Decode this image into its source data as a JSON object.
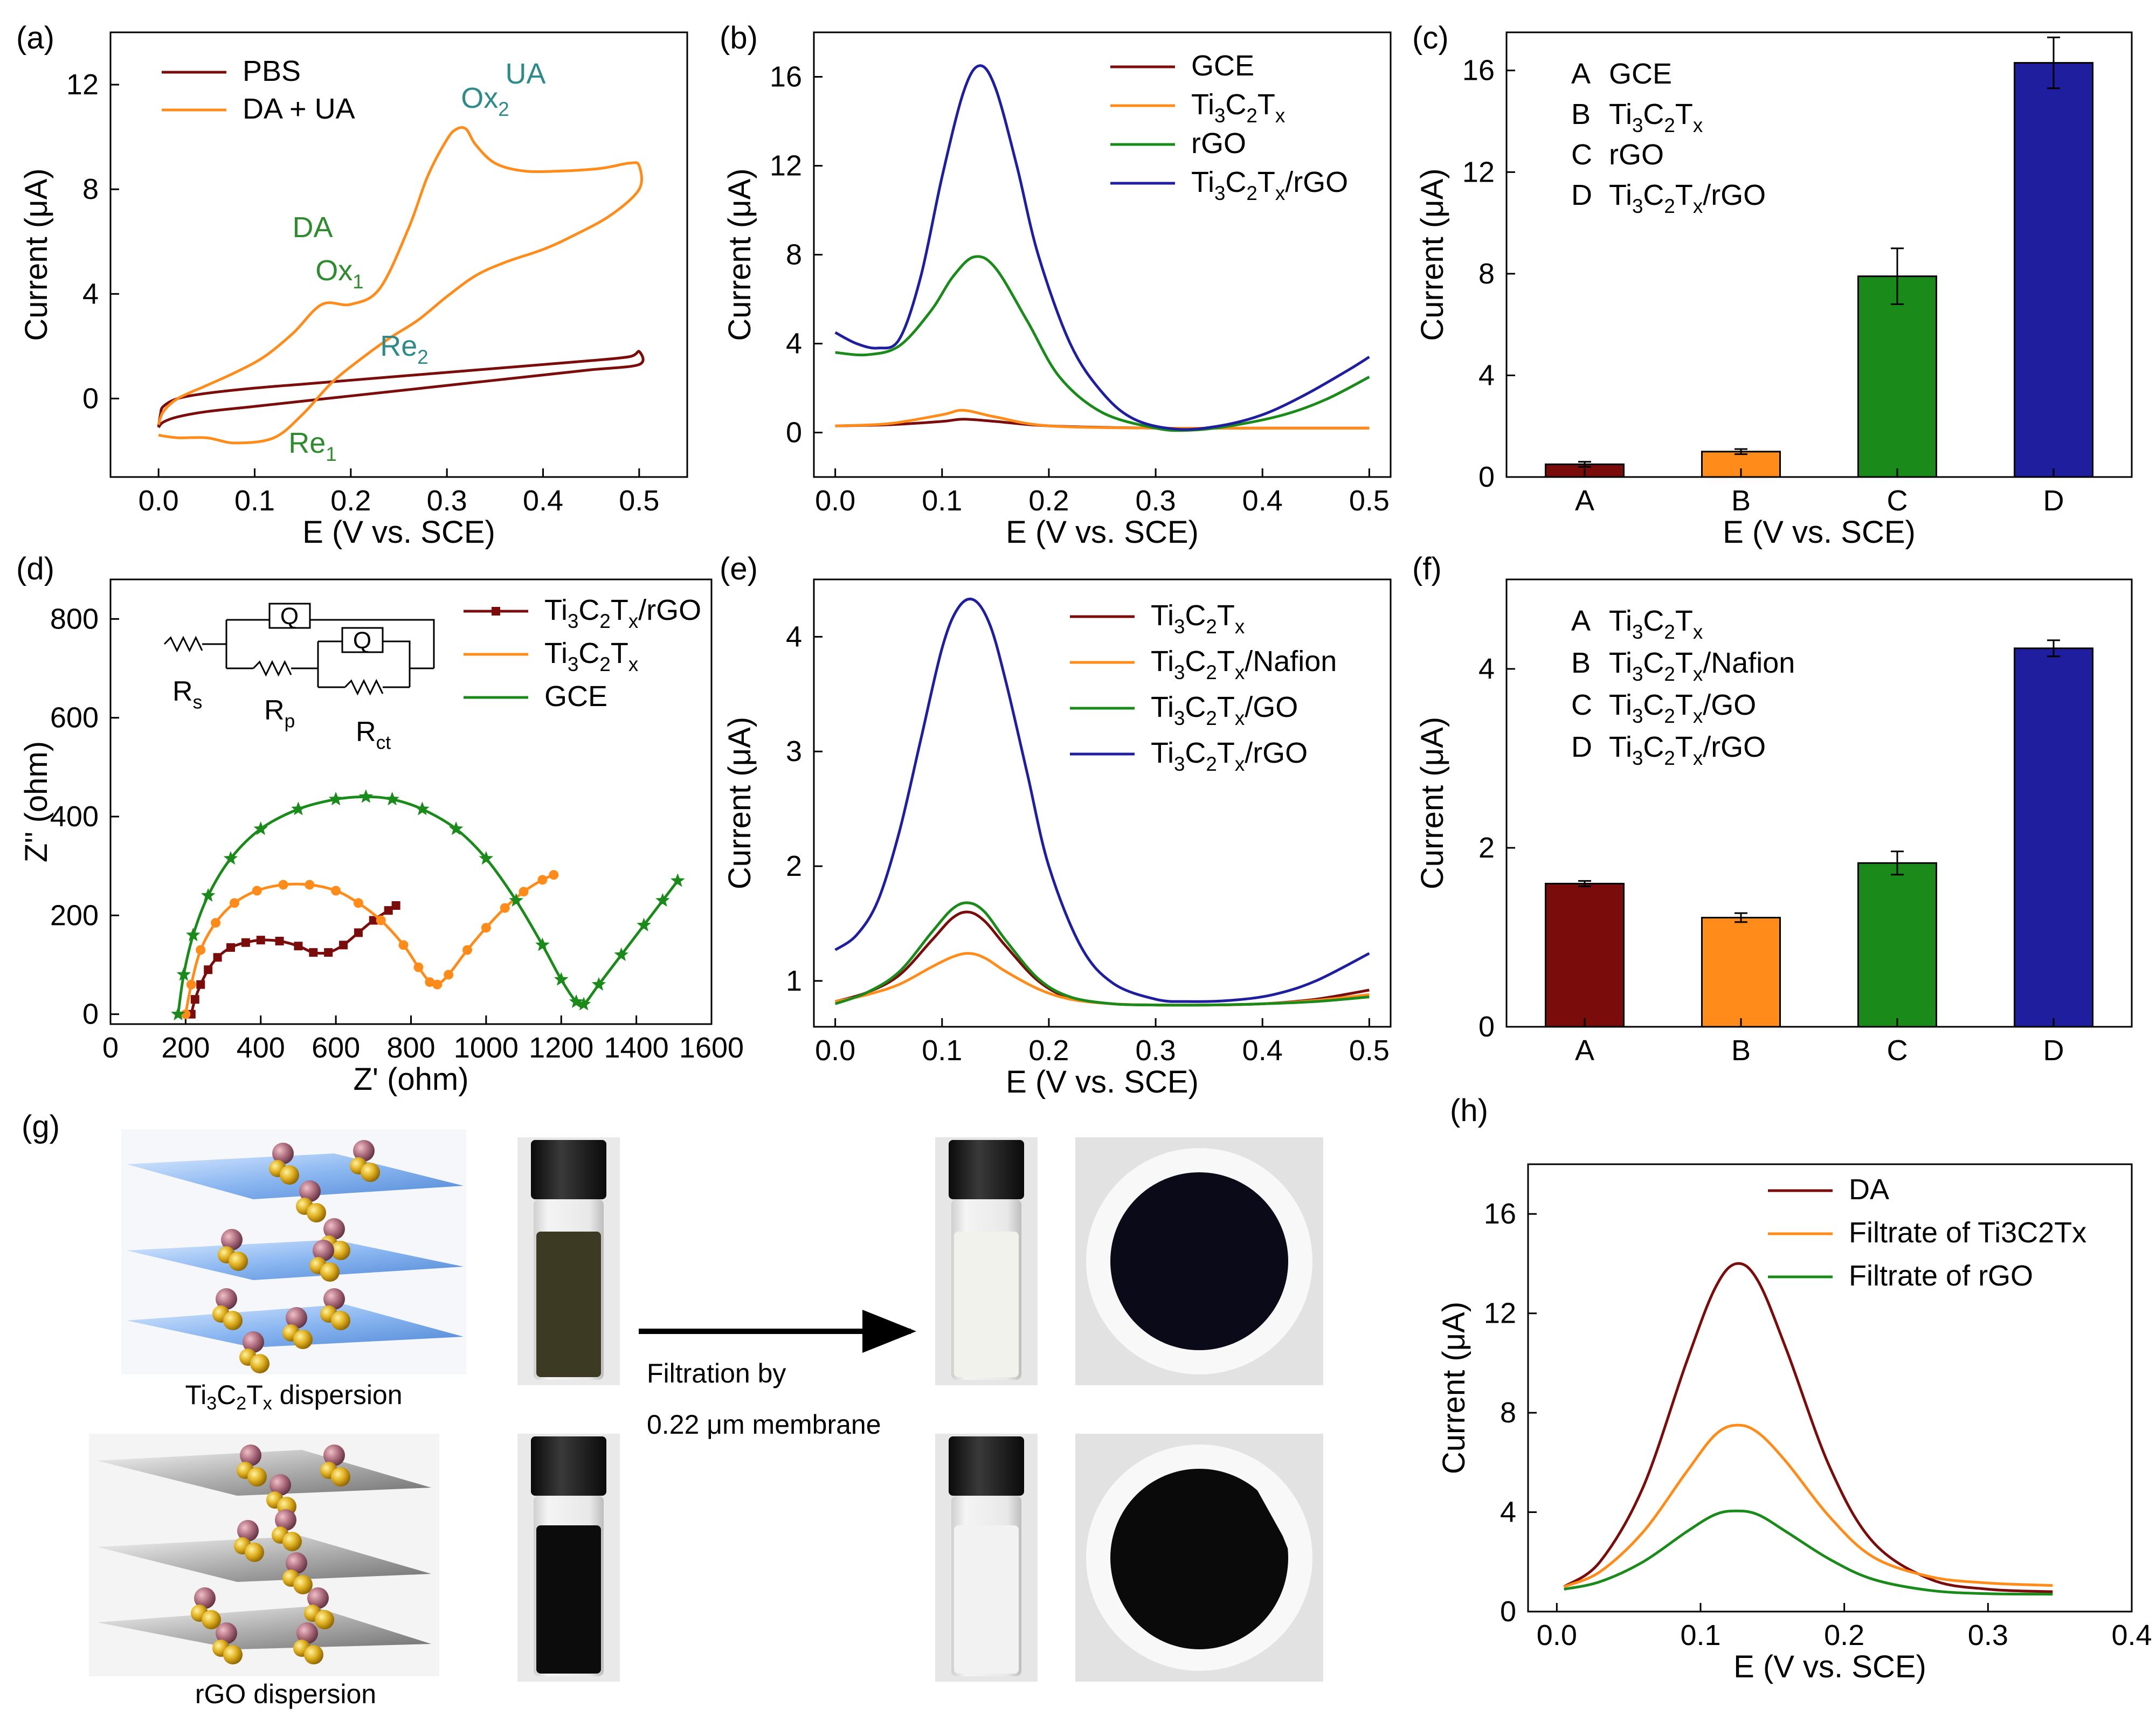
{
  "figure_title": "Multi-panel electrochemical characterization figure",
  "colors": {
    "darkred": "#7a0c0c",
    "orange": "#ff8c1a",
    "green": "#1a8a1a",
    "blue": "#1e1e9e",
    "annot_green": "#2e8b2e",
    "annot_teal": "#2f8a8a",
    "axis": "#000000"
  },
  "chart_data": [
    {
      "panel": "(a)",
      "type": "line",
      "xlabel": "E (V vs. SCE)",
      "ylabel": "Current (μA)",
      "xlim": [
        -0.05,
        0.55
      ],
      "ylim": [
        -3,
        14
      ],
      "xticks": [
        0.0,
        0.1,
        0.2,
        0.3,
        0.4,
        0.5
      ],
      "yticks": [
        0,
        4,
        8,
        12
      ],
      "legend": [
        "PBS",
        "DA + UA"
      ],
      "annotations": [
        "DA",
        "Ox1",
        "UA",
        "Ox2",
        "Re2",
        "Re1"
      ],
      "series": [
        {
          "name": "PBS",
          "color": "darkred",
          "x": [
            0.0,
            0.002,
            0.005,
            0.02,
            0.05,
            0.1,
            0.15,
            0.2,
            0.25,
            0.3,
            0.35,
            0.4,
            0.45,
            0.49,
            0.5,
            0.5,
            0.45,
            0.4,
            0.35,
            0.3,
            0.25,
            0.2,
            0.15,
            0.1,
            0.05,
            0.02,
            0.005,
            0.0
          ],
          "y": [
            -1.1,
            -0.6,
            -0.3,
            0.0,
            0.2,
            0.4,
            0.55,
            0.7,
            0.85,
            1.0,
            1.15,
            1.3,
            1.45,
            1.6,
            1.8,
            1.3,
            1.1,
            0.9,
            0.7,
            0.5,
            0.3,
            0.1,
            -0.1,
            -0.3,
            -0.5,
            -0.7,
            -0.9,
            -1.1
          ]
        },
        {
          "name": "DA + UA",
          "color": "orange",
          "x": [
            0.0,
            0.005,
            0.02,
            0.05,
            0.08,
            0.11,
            0.14,
            0.17,
            0.2,
            0.23,
            0.26,
            0.28,
            0.3,
            0.31,
            0.32,
            0.33,
            0.35,
            0.38,
            0.42,
            0.46,
            0.49,
            0.5,
            0.5,
            0.47,
            0.43,
            0.4,
            0.36,
            0.33,
            0.3,
            0.27,
            0.24,
            0.21,
            0.18,
            0.15,
            0.12,
            0.08,
            0.05,
            0.02,
            0.0
          ],
          "y": [
            -1.0,
            -0.5,
            0.0,
            0.5,
            1.0,
            1.6,
            2.5,
            3.6,
            3.6,
            4.2,
            6.5,
            8.5,
            9.9,
            10.3,
            10.3,
            9.7,
            9.0,
            8.7,
            8.7,
            8.8,
            9.0,
            8.9,
            8.0,
            7.0,
            6.2,
            5.7,
            5.2,
            4.7,
            3.9,
            3.0,
            2.3,
            1.5,
            0.6,
            -0.6,
            -1.5,
            -1.7,
            -1.5,
            -1.5,
            -1.4
          ]
        }
      ]
    },
    {
      "panel": "(b)",
      "type": "line",
      "xlabel": "E (V vs. SCE)",
      "ylabel": "Current (μA)",
      "xlim": [
        -0.02,
        0.52
      ],
      "ylim": [
        -2,
        18
      ],
      "xticks": [
        0.0,
        0.1,
        0.2,
        0.3,
        0.4,
        0.5
      ],
      "yticks": [
        0,
        4,
        8,
        12,
        16
      ],
      "legend": [
        "GCE",
        "Ti3C2Tx",
        "rGO",
        "Ti3C2Tx/rGO"
      ],
      "series": [
        {
          "name": "GCE",
          "color": "darkred",
          "x": [
            0.0,
            0.05,
            0.1,
            0.12,
            0.15,
            0.2,
            0.3,
            0.4,
            0.5
          ],
          "y": [
            0.3,
            0.35,
            0.5,
            0.6,
            0.5,
            0.3,
            0.2,
            0.2,
            0.2
          ]
        },
        {
          "name": "Ti3C2Tx",
          "color": "orange",
          "x": [
            0.0,
            0.05,
            0.1,
            0.12,
            0.15,
            0.2,
            0.3,
            0.4,
            0.5
          ],
          "y": [
            0.3,
            0.4,
            0.8,
            1.0,
            0.7,
            0.3,
            0.2,
            0.2,
            0.2
          ]
        },
        {
          "name": "rGO",
          "color": "green",
          "x": [
            0.0,
            0.03,
            0.06,
            0.09,
            0.11,
            0.13,
            0.15,
            0.18,
            0.21,
            0.25,
            0.3,
            0.33,
            0.37,
            0.42,
            0.46,
            0.5
          ],
          "y": [
            3.6,
            3.5,
            3.9,
            5.5,
            7.0,
            7.9,
            7.4,
            5.0,
            2.5,
            0.9,
            0.2,
            0.1,
            0.3,
            0.8,
            1.5,
            2.5
          ]
        },
        {
          "name": "Ti3C2Tx/rGO",
          "color": "blue",
          "x": [
            0.0,
            0.02,
            0.04,
            0.06,
            0.08,
            0.1,
            0.12,
            0.135,
            0.15,
            0.17,
            0.19,
            0.22,
            0.25,
            0.28,
            0.32,
            0.36,
            0.4,
            0.44,
            0.48,
            0.5
          ],
          "y": [
            4.5,
            4.0,
            3.8,
            4.2,
            7.0,
            11.5,
            15.3,
            16.5,
            15.5,
            12.0,
            8.0,
            4.0,
            1.8,
            0.6,
            0.15,
            0.3,
            0.8,
            1.7,
            2.8,
            3.4
          ]
        }
      ]
    },
    {
      "panel": "(c)",
      "type": "bar",
      "xlabel": "E (V vs. SCE)",
      "ylabel": "Current (μA)",
      "ylim": [
        0,
        17.5
      ],
      "yticks": [
        0,
        4,
        8,
        12,
        16
      ],
      "categories": [
        "A",
        "B",
        "C",
        "D"
      ],
      "legend_letters": [
        "A",
        "B",
        "C",
        "D"
      ],
      "legend_names": [
        "GCE",
        "Ti3C2Tx",
        "rGO",
        "Ti3C2Tx/rGO"
      ],
      "values": [
        0.5,
        1.0,
        7.9,
        16.3
      ],
      "errors": [
        0.1,
        0.1,
        1.1,
        1.0
      ],
      "bar_colors": [
        "darkred",
        "orange",
        "green",
        "blue"
      ]
    },
    {
      "panel": "(d)",
      "type": "scatter",
      "xlabel": "Z' (ohm)",
      "ylabel": "Z'' (ohm)",
      "xlim": [
        0,
        1600
      ],
      "ylim": [
        -20,
        880
      ],
      "xticks": [
        0,
        200,
        400,
        600,
        800,
        1000,
        1200,
        1400,
        1600
      ],
      "yticks": [
        0,
        200,
        400,
        600,
        800
      ],
      "legend": [
        "Ti3C2Tx/rGO",
        "Ti3C2Tx",
        "GCE"
      ],
      "circuit_labels": [
        "Q",
        "Q",
        "Rs",
        "Rp",
        "Rct"
      ],
      "series": [
        {
          "name": "Ti3C2Tx/rGO",
          "color": "darkred",
          "marker": "square",
          "x": [
            215,
            225,
            240,
            260,
            285,
            320,
            360,
            400,
            450,
            500,
            540,
            580,
            620,
            660,
            700,
            740,
            760
          ],
          "y": [
            0,
            30,
            60,
            90,
            115,
            135,
            145,
            150,
            148,
            138,
            125,
            125,
            140,
            165,
            190,
            210,
            220
          ]
        },
        {
          "name": "Ti3C2Tx",
          "color": "orange",
          "marker": "circle",
          "x": [
            200,
            215,
            240,
            280,
            330,
            390,
            460,
            530,
            600,
            660,
            720,
            780,
            820,
            850,
            870,
            900,
            950,
            1000,
            1050,
            1100,
            1150,
            1180
          ],
          "y": [
            0,
            60,
            130,
            185,
            225,
            250,
            262,
            262,
            250,
            225,
            190,
            140,
            95,
            65,
            60,
            80,
            130,
            175,
            215,
            248,
            272,
            282
          ]
        },
        {
          "name": "GCE",
          "color": "green",
          "marker": "star",
          "x": [
            180,
            195,
            220,
            260,
            320,
            400,
            500,
            600,
            680,
            750,
            830,
            920,
            1000,
            1080,
            1150,
            1200,
            1240,
            1260,
            1300,
            1360,
            1420,
            1470,
            1510
          ],
          "y": [
            0,
            80,
            160,
            240,
            315,
            375,
            415,
            435,
            440,
            435,
            415,
            375,
            315,
            230,
            140,
            70,
            25,
            20,
            60,
            120,
            180,
            230,
            270
          ]
        }
      ]
    },
    {
      "panel": "(e)",
      "type": "line",
      "xlabel": "E (V vs. SCE)",
      "ylabel": "Current (μA)",
      "xlim": [
        -0.02,
        0.52
      ],
      "ylim": [
        0.6,
        4.5
      ],
      "xticks": [
        0.0,
        0.1,
        0.2,
        0.3,
        0.4,
        0.5
      ],
      "yticks": [
        1,
        2,
        3,
        4
      ],
      "legend": [
        "Ti3C2Tx",
        "Ti3C2Tx/Nafion",
        "Ti3C2Tx/GO",
        "Ti3C2Tx/rGO"
      ],
      "series": [
        {
          "name": "Ti3C2Tx",
          "color": "darkred",
          "x": [
            0.0,
            0.03,
            0.06,
            0.09,
            0.11,
            0.125,
            0.14,
            0.16,
            0.19,
            0.22,
            0.26,
            0.3,
            0.35,
            0.4,
            0.45,
            0.5
          ],
          "y": [
            0.82,
            0.9,
            1.05,
            1.35,
            1.55,
            1.6,
            1.52,
            1.3,
            1.0,
            0.85,
            0.8,
            0.79,
            0.79,
            0.8,
            0.84,
            0.92
          ]
        },
        {
          "name": "Ti3C2Tx/Nafion",
          "color": "orange",
          "x": [
            0.0,
            0.03,
            0.06,
            0.09,
            0.11,
            0.125,
            0.14,
            0.16,
            0.19,
            0.22,
            0.26,
            0.3,
            0.35,
            0.4,
            0.45,
            0.5
          ],
          "y": [
            0.82,
            0.88,
            0.97,
            1.12,
            1.21,
            1.24,
            1.2,
            1.08,
            0.93,
            0.84,
            0.8,
            0.79,
            0.79,
            0.8,
            0.83,
            0.88
          ]
        },
        {
          "name": "Ti3C2Tx/GO",
          "color": "green",
          "x": [
            0.0,
            0.03,
            0.06,
            0.09,
            0.11,
            0.125,
            0.14,
            0.16,
            0.19,
            0.22,
            0.26,
            0.3,
            0.35,
            0.4,
            0.45,
            0.5
          ],
          "y": [
            0.8,
            0.9,
            1.08,
            1.42,
            1.63,
            1.68,
            1.6,
            1.35,
            1.02,
            0.86,
            0.8,
            0.79,
            0.79,
            0.8,
            0.82,
            0.86
          ]
        },
        {
          "name": "Ti3C2Tx/rGO",
          "color": "blue",
          "x": [
            0.0,
            0.02,
            0.04,
            0.06,
            0.08,
            0.1,
            0.115,
            0.13,
            0.145,
            0.16,
            0.18,
            0.2,
            0.23,
            0.26,
            0.3,
            0.33,
            0.37,
            0.41,
            0.45,
            0.5
          ],
          "y": [
            1.27,
            1.4,
            1.7,
            2.3,
            3.1,
            3.9,
            4.25,
            4.32,
            4.1,
            3.6,
            2.8,
            2.0,
            1.3,
            0.98,
            0.84,
            0.82,
            0.83,
            0.88,
            1.0,
            1.24
          ]
        }
      ]
    },
    {
      "panel": "(f)",
      "type": "bar",
      "ylabel": "Current (μA)",
      "ylim": [
        0,
        5.0
      ],
      "yticks": [
        0,
        2,
        4
      ],
      "categories": [
        "A",
        "B",
        "C",
        "D"
      ],
      "legend_letters": [
        "A",
        "B",
        "C",
        "D"
      ],
      "legend_names": [
        "Ti3C2Tx",
        "Ti3C2Tx/Nafion",
        "Ti3C2Tx/GO",
        "Ti3C2Tx/rGO"
      ],
      "values": [
        1.6,
        1.22,
        1.83,
        4.23
      ],
      "errors": [
        0.03,
        0.05,
        0.13,
        0.09
      ],
      "bar_colors": [
        "darkred",
        "orange",
        "green",
        "blue"
      ]
    },
    {
      "panel": "(h)",
      "type": "line",
      "xlabel": "E (V vs. SCE)",
      "ylabel": "Current (μA)",
      "xlim": [
        -0.02,
        0.4
      ],
      "ylim": [
        0,
        18
      ],
      "xticks": [
        0.0,
        0.1,
        0.2,
        0.3,
        0.4
      ],
      "yticks": [
        0,
        4,
        8,
        12,
        16
      ],
      "legend": [
        "DA",
        "Filtrate of Ti3C2Tx",
        "Filtrate of rGO"
      ],
      "series": [
        {
          "name": "DA",
          "color": "darkred",
          "x": [
            0.005,
            0.03,
            0.06,
            0.09,
            0.11,
            0.125,
            0.14,
            0.16,
            0.19,
            0.22,
            0.26,
            0.3,
            0.345
          ],
          "y": [
            1.0,
            2.0,
            5.0,
            10.0,
            13.0,
            14.0,
            13.3,
            10.5,
            5.8,
            2.8,
            1.3,
            0.9,
            0.8
          ]
        },
        {
          "name": "Filtrate of Ti3C2Tx",
          "color": "orange",
          "x": [
            0.005,
            0.03,
            0.06,
            0.09,
            0.11,
            0.125,
            0.14,
            0.16,
            0.19,
            0.22,
            0.26,
            0.3,
            0.345
          ],
          "y": [
            1.0,
            1.6,
            3.2,
            5.6,
            7.1,
            7.5,
            7.2,
            6.0,
            3.8,
            2.2,
            1.4,
            1.15,
            1.05
          ]
        },
        {
          "name": "Filtrate of rGO",
          "color": "green",
          "x": [
            0.005,
            0.03,
            0.06,
            0.09,
            0.11,
            0.125,
            0.14,
            0.16,
            0.19,
            0.22,
            0.26,
            0.3,
            0.345
          ],
          "y": [
            0.9,
            1.2,
            2.0,
            3.2,
            3.9,
            4.05,
            3.9,
            3.2,
            2.1,
            1.3,
            0.85,
            0.72,
            0.7
          ]
        }
      ]
    }
  ],
  "panel_g": {
    "label": "(g)",
    "ti_caption": "Ti3C2Tx dispersion",
    "rgo_caption": "rGO dispersion",
    "arrow_text_1": "Filtration by",
    "arrow_text_2": "0.22 μm membrane"
  },
  "panel_labels": [
    "(a)",
    "(b)",
    "(c)",
    "(d)",
    "(e)",
    "(f)",
    "(h)"
  ]
}
